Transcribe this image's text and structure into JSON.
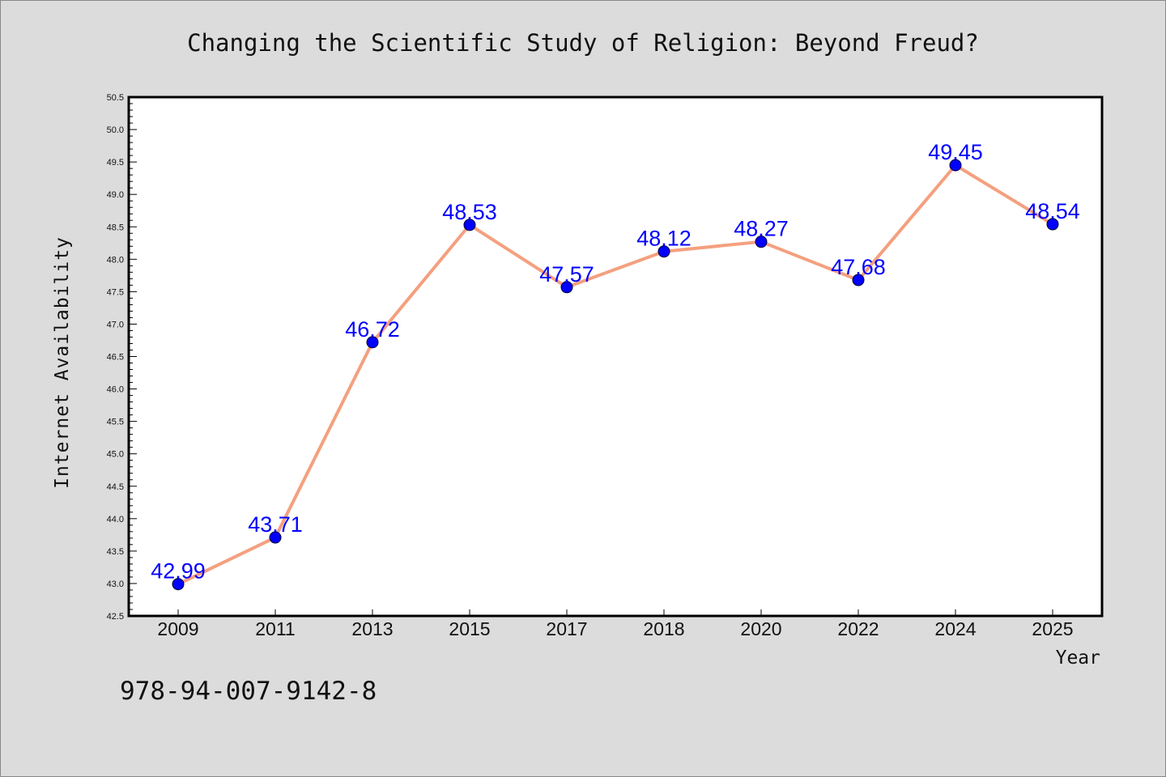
{
  "chart_data": {
    "type": "line",
    "title": "Changing the Scientific Study of Religion: Beyond Freud?",
    "xlabel": "Year",
    "ylabel": "Internet Availability",
    "categories": [
      "2009",
      "2011",
      "2013",
      "2015",
      "2017",
      "2018",
      "2020",
      "2022",
      "2024",
      "2025"
    ],
    "values": [
      42.99,
      43.71,
      46.72,
      48.53,
      47.57,
      48.12,
      48.27,
      47.68,
      49.45,
      48.54
    ],
    "data_labels": [
      "42.99",
      "43.71",
      "46.72",
      "48.53",
      "47.57",
      "48.12",
      "48.27",
      "47.68",
      "49.45",
      "48.54"
    ],
    "ylim": [
      42.5,
      50.5
    ],
    "yticks": [
      "42.5",
      "43.0",
      "43.5",
      "44.0",
      "44.5",
      "45.0",
      "45.5",
      "46.0",
      "46.5",
      "47.0",
      "47.5",
      "48.0",
      "48.5",
      "49.0",
      "49.5",
      "50.0",
      "50.5"
    ],
    "grid": false,
    "line_color": "#f4a07f",
    "marker_color": "#0000ff",
    "label_color": "#0000ff"
  },
  "annotation": {
    "isbn": "978-94-007-9142-8"
  }
}
